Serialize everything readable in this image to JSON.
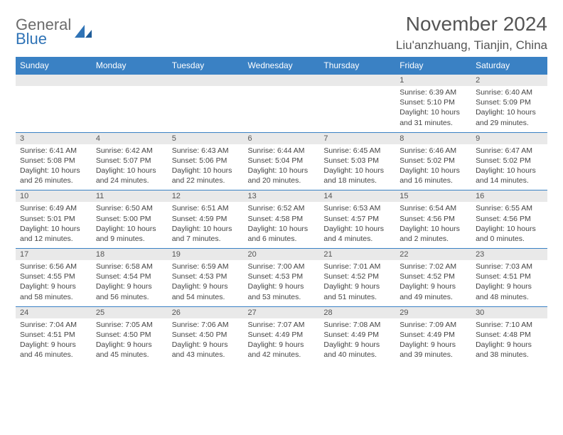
{
  "logo": {
    "word1": "General",
    "word2": "Blue"
  },
  "title": "November 2024",
  "location": "Liu'anzhuang, Tianjin, China",
  "colors": {
    "header_bg": "#3a81c4",
    "header_text": "#ffffff",
    "daynum_bg": "#e9e9e9",
    "body_bg": "#ffffff",
    "text": "#444444",
    "logo_gray": "#6b6b6b",
    "logo_blue": "#2f73b6"
  },
  "day_names": [
    "Sunday",
    "Monday",
    "Tuesday",
    "Wednesday",
    "Thursday",
    "Friday",
    "Saturday"
  ],
  "weeks": [
    [
      {
        "n": "",
        "sr": "",
        "ss": "",
        "dl": ""
      },
      {
        "n": "",
        "sr": "",
        "ss": "",
        "dl": ""
      },
      {
        "n": "",
        "sr": "",
        "ss": "",
        "dl": ""
      },
      {
        "n": "",
        "sr": "",
        "ss": "",
        "dl": ""
      },
      {
        "n": "",
        "sr": "",
        "ss": "",
        "dl": ""
      },
      {
        "n": "1",
        "sr": "Sunrise: 6:39 AM",
        "ss": "Sunset: 5:10 PM",
        "dl": "Daylight: 10 hours and 31 minutes."
      },
      {
        "n": "2",
        "sr": "Sunrise: 6:40 AM",
        "ss": "Sunset: 5:09 PM",
        "dl": "Daylight: 10 hours and 29 minutes."
      }
    ],
    [
      {
        "n": "3",
        "sr": "Sunrise: 6:41 AM",
        "ss": "Sunset: 5:08 PM",
        "dl": "Daylight: 10 hours and 26 minutes."
      },
      {
        "n": "4",
        "sr": "Sunrise: 6:42 AM",
        "ss": "Sunset: 5:07 PM",
        "dl": "Daylight: 10 hours and 24 minutes."
      },
      {
        "n": "5",
        "sr": "Sunrise: 6:43 AM",
        "ss": "Sunset: 5:06 PM",
        "dl": "Daylight: 10 hours and 22 minutes."
      },
      {
        "n": "6",
        "sr": "Sunrise: 6:44 AM",
        "ss": "Sunset: 5:04 PM",
        "dl": "Daylight: 10 hours and 20 minutes."
      },
      {
        "n": "7",
        "sr": "Sunrise: 6:45 AM",
        "ss": "Sunset: 5:03 PM",
        "dl": "Daylight: 10 hours and 18 minutes."
      },
      {
        "n": "8",
        "sr": "Sunrise: 6:46 AM",
        "ss": "Sunset: 5:02 PM",
        "dl": "Daylight: 10 hours and 16 minutes."
      },
      {
        "n": "9",
        "sr": "Sunrise: 6:47 AM",
        "ss": "Sunset: 5:02 PM",
        "dl": "Daylight: 10 hours and 14 minutes."
      }
    ],
    [
      {
        "n": "10",
        "sr": "Sunrise: 6:49 AM",
        "ss": "Sunset: 5:01 PM",
        "dl": "Daylight: 10 hours and 12 minutes."
      },
      {
        "n": "11",
        "sr": "Sunrise: 6:50 AM",
        "ss": "Sunset: 5:00 PM",
        "dl": "Daylight: 10 hours and 9 minutes."
      },
      {
        "n": "12",
        "sr": "Sunrise: 6:51 AM",
        "ss": "Sunset: 4:59 PM",
        "dl": "Daylight: 10 hours and 7 minutes."
      },
      {
        "n": "13",
        "sr": "Sunrise: 6:52 AM",
        "ss": "Sunset: 4:58 PM",
        "dl": "Daylight: 10 hours and 6 minutes."
      },
      {
        "n": "14",
        "sr": "Sunrise: 6:53 AM",
        "ss": "Sunset: 4:57 PM",
        "dl": "Daylight: 10 hours and 4 minutes."
      },
      {
        "n": "15",
        "sr": "Sunrise: 6:54 AM",
        "ss": "Sunset: 4:56 PM",
        "dl": "Daylight: 10 hours and 2 minutes."
      },
      {
        "n": "16",
        "sr": "Sunrise: 6:55 AM",
        "ss": "Sunset: 4:56 PM",
        "dl": "Daylight: 10 hours and 0 minutes."
      }
    ],
    [
      {
        "n": "17",
        "sr": "Sunrise: 6:56 AM",
        "ss": "Sunset: 4:55 PM",
        "dl": "Daylight: 9 hours and 58 minutes."
      },
      {
        "n": "18",
        "sr": "Sunrise: 6:58 AM",
        "ss": "Sunset: 4:54 PM",
        "dl": "Daylight: 9 hours and 56 minutes."
      },
      {
        "n": "19",
        "sr": "Sunrise: 6:59 AM",
        "ss": "Sunset: 4:53 PM",
        "dl": "Daylight: 9 hours and 54 minutes."
      },
      {
        "n": "20",
        "sr": "Sunrise: 7:00 AM",
        "ss": "Sunset: 4:53 PM",
        "dl": "Daylight: 9 hours and 53 minutes."
      },
      {
        "n": "21",
        "sr": "Sunrise: 7:01 AM",
        "ss": "Sunset: 4:52 PM",
        "dl": "Daylight: 9 hours and 51 minutes."
      },
      {
        "n": "22",
        "sr": "Sunrise: 7:02 AM",
        "ss": "Sunset: 4:52 PM",
        "dl": "Daylight: 9 hours and 49 minutes."
      },
      {
        "n": "23",
        "sr": "Sunrise: 7:03 AM",
        "ss": "Sunset: 4:51 PM",
        "dl": "Daylight: 9 hours and 48 minutes."
      }
    ],
    [
      {
        "n": "24",
        "sr": "Sunrise: 7:04 AM",
        "ss": "Sunset: 4:51 PM",
        "dl": "Daylight: 9 hours and 46 minutes."
      },
      {
        "n": "25",
        "sr": "Sunrise: 7:05 AM",
        "ss": "Sunset: 4:50 PM",
        "dl": "Daylight: 9 hours and 45 minutes."
      },
      {
        "n": "26",
        "sr": "Sunrise: 7:06 AM",
        "ss": "Sunset: 4:50 PM",
        "dl": "Daylight: 9 hours and 43 minutes."
      },
      {
        "n": "27",
        "sr": "Sunrise: 7:07 AM",
        "ss": "Sunset: 4:49 PM",
        "dl": "Daylight: 9 hours and 42 minutes."
      },
      {
        "n": "28",
        "sr": "Sunrise: 7:08 AM",
        "ss": "Sunset: 4:49 PM",
        "dl": "Daylight: 9 hours and 40 minutes."
      },
      {
        "n": "29",
        "sr": "Sunrise: 7:09 AM",
        "ss": "Sunset: 4:49 PM",
        "dl": "Daylight: 9 hours and 39 minutes."
      },
      {
        "n": "30",
        "sr": "Sunrise: 7:10 AM",
        "ss": "Sunset: 4:48 PM",
        "dl": "Daylight: 9 hours and 38 minutes."
      }
    ]
  ]
}
